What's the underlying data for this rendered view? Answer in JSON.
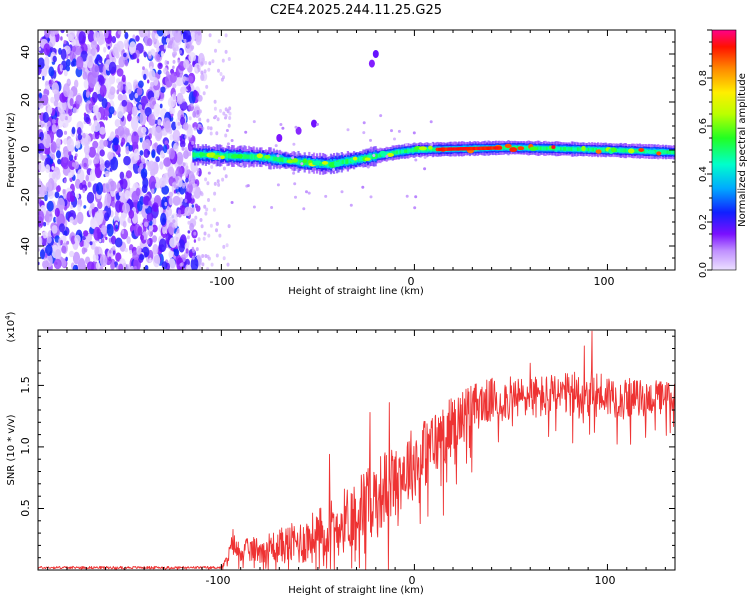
{
  "title": "C2E4.2025.244.11.25.G25",
  "colors": {
    "snr_line": "#ee3333",
    "axis": "#000000",
    "background": "#ffffff"
  },
  "chart_data": [
    {
      "type": "heatmap",
      "name": "spectrogram",
      "xlabel": "Height of straight line (km)",
      "ylabel": "Frequency (Hz)",
      "xlim": [
        -195,
        135
      ],
      "ylim": [
        -50,
        50
      ],
      "xticks": [
        -100,
        0,
        100
      ],
      "xtick_labels": [
        "-100",
        "0",
        "100"
      ],
      "yticks": [
        -40,
        -20,
        0,
        20,
        40
      ],
      "ytick_labels": [
        "-40",
        "-20",
        "0",
        "20",
        "40"
      ],
      "colorbar": {
        "label": "Normalized spectral amplitude",
        "range": [
          0,
          1
        ],
        "ticks": [
          0.0,
          0.2,
          0.4,
          0.6,
          0.8
        ],
        "tick_labels": [
          "0.0",
          "0.2",
          "0.4",
          "0.6",
          "0.8"
        ],
        "colors": [
          "#e8d8ff",
          "#b070ff",
          "#6a00ff",
          "#0033ff",
          "#00ccff",
          "#00ff88",
          "#88ff00",
          "#ffff00",
          "#ff9900",
          "#ff2200",
          "#ff0088"
        ]
      },
      "features": {
        "noise_region_x": [
          -195,
          -110
        ],
        "carrier_frequency_hz": 0,
        "carrier_x": [
          -115,
          135
        ],
        "drift_points": [
          [
            -110,
            -2
          ],
          [
            -80,
            -3
          ],
          [
            -60,
            -5
          ],
          [
            -45,
            -6
          ],
          [
            -30,
            -4
          ],
          [
            -10,
            -1
          ],
          [
            0,
            0
          ],
          [
            50,
            1
          ],
          [
            100,
            0
          ],
          [
            135,
            -1
          ]
        ],
        "side_trace_points": [
          [
            -70,
            5
          ],
          [
            -60,
            8
          ],
          [
            -52,
            11
          ],
          [
            -22,
            36
          ],
          [
            -20,
            40
          ]
        ]
      }
    },
    {
      "type": "line",
      "name": "snr",
      "xlabel": "Height of straight line (km)",
      "ylabel": "SNR (10 * v/v)",
      "exponent_label": "(x10",
      "exponent_power": "4",
      "exponent_close": ")",
      "xlim": [
        -195,
        135
      ],
      "ylim": [
        0,
        1.95
      ],
      "xticks": [
        -100,
        0,
        100
      ],
      "xtick_labels": [
        "-100",
        "0",
        "100"
      ],
      "yticks": [
        0.5,
        1.0,
        1.5
      ],
      "ytick_labels": [
        "0.5",
        "1.0",
        "1.5"
      ],
      "envelope": {
        "x": [
          -195,
          -100,
          -97,
          -94,
          -92,
          -85,
          -70,
          -60,
          -50,
          -40,
          -30,
          -20,
          -10,
          0,
          10,
          20,
          30,
          40,
          60,
          80,
          90,
          100,
          110,
          120,
          135
        ],
        "mean": [
          0.02,
          0.02,
          0.08,
          0.22,
          0.16,
          0.16,
          0.2,
          0.22,
          0.28,
          0.36,
          0.48,
          0.6,
          0.74,
          0.88,
          1.02,
          1.18,
          1.32,
          1.38,
          1.4,
          1.42,
          1.44,
          1.42,
          1.4,
          1.4,
          1.4
        ],
        "amp": [
          0.01,
          0.01,
          0.05,
          0.1,
          0.08,
          0.1,
          0.14,
          0.18,
          0.22,
          0.26,
          0.28,
          0.32,
          0.3,
          0.3,
          0.28,
          0.24,
          0.2,
          0.18,
          0.18,
          0.18,
          0.22,
          0.18,
          0.16,
          0.14,
          0.14
        ]
      },
      "peaks": [
        [
          -94,
          0.33
        ],
        [
          -44,
          0.94
        ],
        [
          -23,
          1.28
        ],
        [
          -13,
          1.36
        ],
        [
          92,
          1.94
        ],
        [
          88,
          1.82
        ],
        [
          60,
          1.68
        ],
        [
          130,
          1.5
        ]
      ]
    }
  ]
}
